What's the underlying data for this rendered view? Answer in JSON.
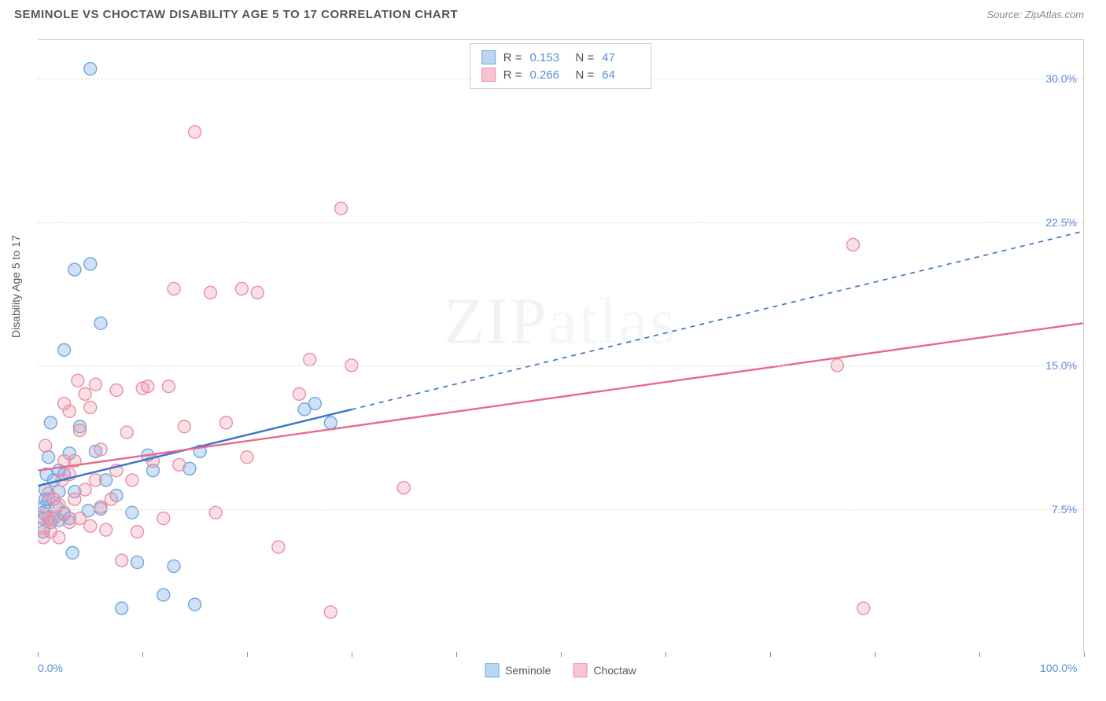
{
  "header": {
    "title": "SEMINOLE VS CHOCTAW DISABILITY AGE 5 TO 17 CORRELATION CHART",
    "source": "Source: ZipAtlas.com"
  },
  "watermark": {
    "bold": "ZIP",
    "light": "atlas"
  },
  "chart": {
    "type": "scatter",
    "y_label": "Disability Age 5 to 17",
    "xlim": [
      0,
      100
    ],
    "ylim": [
      0,
      32
    ],
    "y_ticks": [
      {
        "v": 7.5,
        "label": "7.5%"
      },
      {
        "v": 15.0,
        "label": "15.0%"
      },
      {
        "v": 22.5,
        "label": "22.5%"
      },
      {
        "v": 30.0,
        "label": "30.0%"
      }
    ],
    "x_tick_positions": [
      0,
      10,
      20,
      30,
      40,
      50,
      60,
      70,
      80,
      90,
      100
    ],
    "x_tick_labels": [
      {
        "v": 0,
        "label": "0.0%"
      },
      {
        "v": 100,
        "label": "100.0%"
      }
    ],
    "background_color": "#ffffff",
    "grid_color": "#dddddd",
    "marker_radius": 8,
    "marker_stroke_width": 1.4,
    "series": [
      {
        "name": "Seminole",
        "color_fill": "rgba(120,170,230,0.35)",
        "color_stroke": "#6fa8dc",
        "swatch_fill": "#bcd5ef",
        "swatch_border": "#6fa8dc",
        "stats": {
          "R": "0.153",
          "N": "47"
        },
        "trend": {
          "x1": 0,
          "y1": 8.7,
          "x2": 100,
          "y2": 22.0,
          "solid_until_x": 30,
          "color": "#3d74c7",
          "width": 2.4
        },
        "points": [
          [
            0.5,
            6.3
          ],
          [
            0.5,
            7.0
          ],
          [
            0.5,
            7.3
          ],
          [
            0.5,
            7.6
          ],
          [
            0.7,
            8.0
          ],
          [
            0.7,
            8.5
          ],
          [
            0.8,
            9.3
          ],
          [
            1.0,
            8.0
          ],
          [
            1.0,
            10.2
          ],
          [
            1.2,
            6.8
          ],
          [
            1.2,
            12.0
          ],
          [
            1.5,
            7.0
          ],
          [
            1.5,
            9.0
          ],
          [
            1.8,
            7.6
          ],
          [
            2.0,
            6.9
          ],
          [
            2.0,
            8.4
          ],
          [
            2.0,
            9.5
          ],
          [
            2.5,
            7.2
          ],
          [
            2.5,
            9.3
          ],
          [
            2.5,
            15.8
          ],
          [
            3.0,
            7.0
          ],
          [
            3.0,
            10.4
          ],
          [
            3.3,
            5.2
          ],
          [
            3.5,
            8.4
          ],
          [
            3.5,
            20.0
          ],
          [
            4.0,
            11.8
          ],
          [
            4.8,
            7.4
          ],
          [
            5.0,
            30.5
          ],
          [
            5.0,
            20.3
          ],
          [
            5.5,
            10.5
          ],
          [
            6.0,
            7.5
          ],
          [
            6.0,
            17.2
          ],
          [
            6.5,
            9.0
          ],
          [
            7.5,
            8.2
          ],
          [
            8.0,
            2.3
          ],
          [
            9.0,
            7.3
          ],
          [
            9.5,
            4.7
          ],
          [
            10.5,
            10.3
          ],
          [
            11.0,
            9.5
          ],
          [
            12.0,
            3.0
          ],
          [
            13.0,
            4.5
          ],
          [
            14.5,
            9.6
          ],
          [
            15.0,
            2.5
          ],
          [
            15.5,
            10.5
          ],
          [
            25.5,
            12.7
          ],
          [
            26.5,
            13.0
          ],
          [
            28.0,
            12.0
          ]
        ]
      },
      {
        "name": "Choctaw",
        "color_fill": "rgba(240,150,170,0.30)",
        "color_stroke": "#e98fa5",
        "swatch_fill": "#f5c6d1",
        "swatch_border": "#e98fa5",
        "stats": {
          "R": "0.266",
          "N": "64"
        },
        "trend": {
          "x1": 0,
          "y1": 9.5,
          "x2": 100,
          "y2": 17.2,
          "solid_until_x": 100,
          "color": "#e76a8b",
          "width": 2.4
        },
        "points": [
          [
            0.5,
            6.0
          ],
          [
            0.5,
            6.5
          ],
          [
            0.7,
            7.2
          ],
          [
            0.7,
            10.8
          ],
          [
            1.0,
            7.0
          ],
          [
            1.0,
            8.3
          ],
          [
            1.2,
            6.3
          ],
          [
            1.5,
            7.0
          ],
          [
            1.5,
            8.0
          ],
          [
            2.0,
            6.0
          ],
          [
            2.0,
            7.7
          ],
          [
            2.3,
            9.0
          ],
          [
            2.5,
            7.3
          ],
          [
            2.5,
            10.0
          ],
          [
            2.5,
            13.0
          ],
          [
            3.0,
            6.8
          ],
          [
            3.0,
            9.3
          ],
          [
            3.0,
            12.6
          ],
          [
            3.5,
            8.0
          ],
          [
            3.5,
            10.0
          ],
          [
            3.8,
            14.2
          ],
          [
            4.0,
            7.0
          ],
          [
            4.0,
            11.6
          ],
          [
            4.5,
            8.5
          ],
          [
            4.5,
            13.5
          ],
          [
            5.0,
            6.6
          ],
          [
            5.0,
            12.8
          ],
          [
            5.5,
            9.0
          ],
          [
            5.5,
            14.0
          ],
          [
            6.0,
            7.6
          ],
          [
            6.0,
            10.6
          ],
          [
            6.5,
            6.4
          ],
          [
            7.0,
            8.0
          ],
          [
            7.5,
            9.5
          ],
          [
            7.5,
            13.7
          ],
          [
            8.0,
            4.8
          ],
          [
            8.5,
            11.5
          ],
          [
            9.0,
            9.0
          ],
          [
            9.5,
            6.3
          ],
          [
            10.0,
            13.8
          ],
          [
            10.5,
            13.9
          ],
          [
            11.0,
            10.0
          ],
          [
            12.0,
            7.0
          ],
          [
            12.5,
            13.9
          ],
          [
            13.0,
            19.0
          ],
          [
            13.5,
            9.8
          ],
          [
            14.0,
            11.8
          ],
          [
            15.0,
            27.2
          ],
          [
            16.5,
            18.8
          ],
          [
            17.0,
            7.3
          ],
          [
            18.0,
            12.0
          ],
          [
            19.5,
            19.0
          ],
          [
            20.0,
            10.2
          ],
          [
            21.0,
            18.8
          ],
          [
            23.0,
            5.5
          ],
          [
            25.0,
            13.5
          ],
          [
            26.0,
            15.3
          ],
          [
            28.0,
            2.1
          ],
          [
            29.0,
            23.2
          ],
          [
            30.0,
            15.0
          ],
          [
            35.0,
            8.6
          ],
          [
            76.5,
            15.0
          ],
          [
            78.0,
            21.3
          ],
          [
            79.0,
            2.3
          ]
        ]
      }
    ],
    "legend_top": {
      "r_label": "R =",
      "n_label": "N ="
    },
    "legend_bottom_labels": [
      "Seminole",
      "Choctaw"
    ]
  }
}
